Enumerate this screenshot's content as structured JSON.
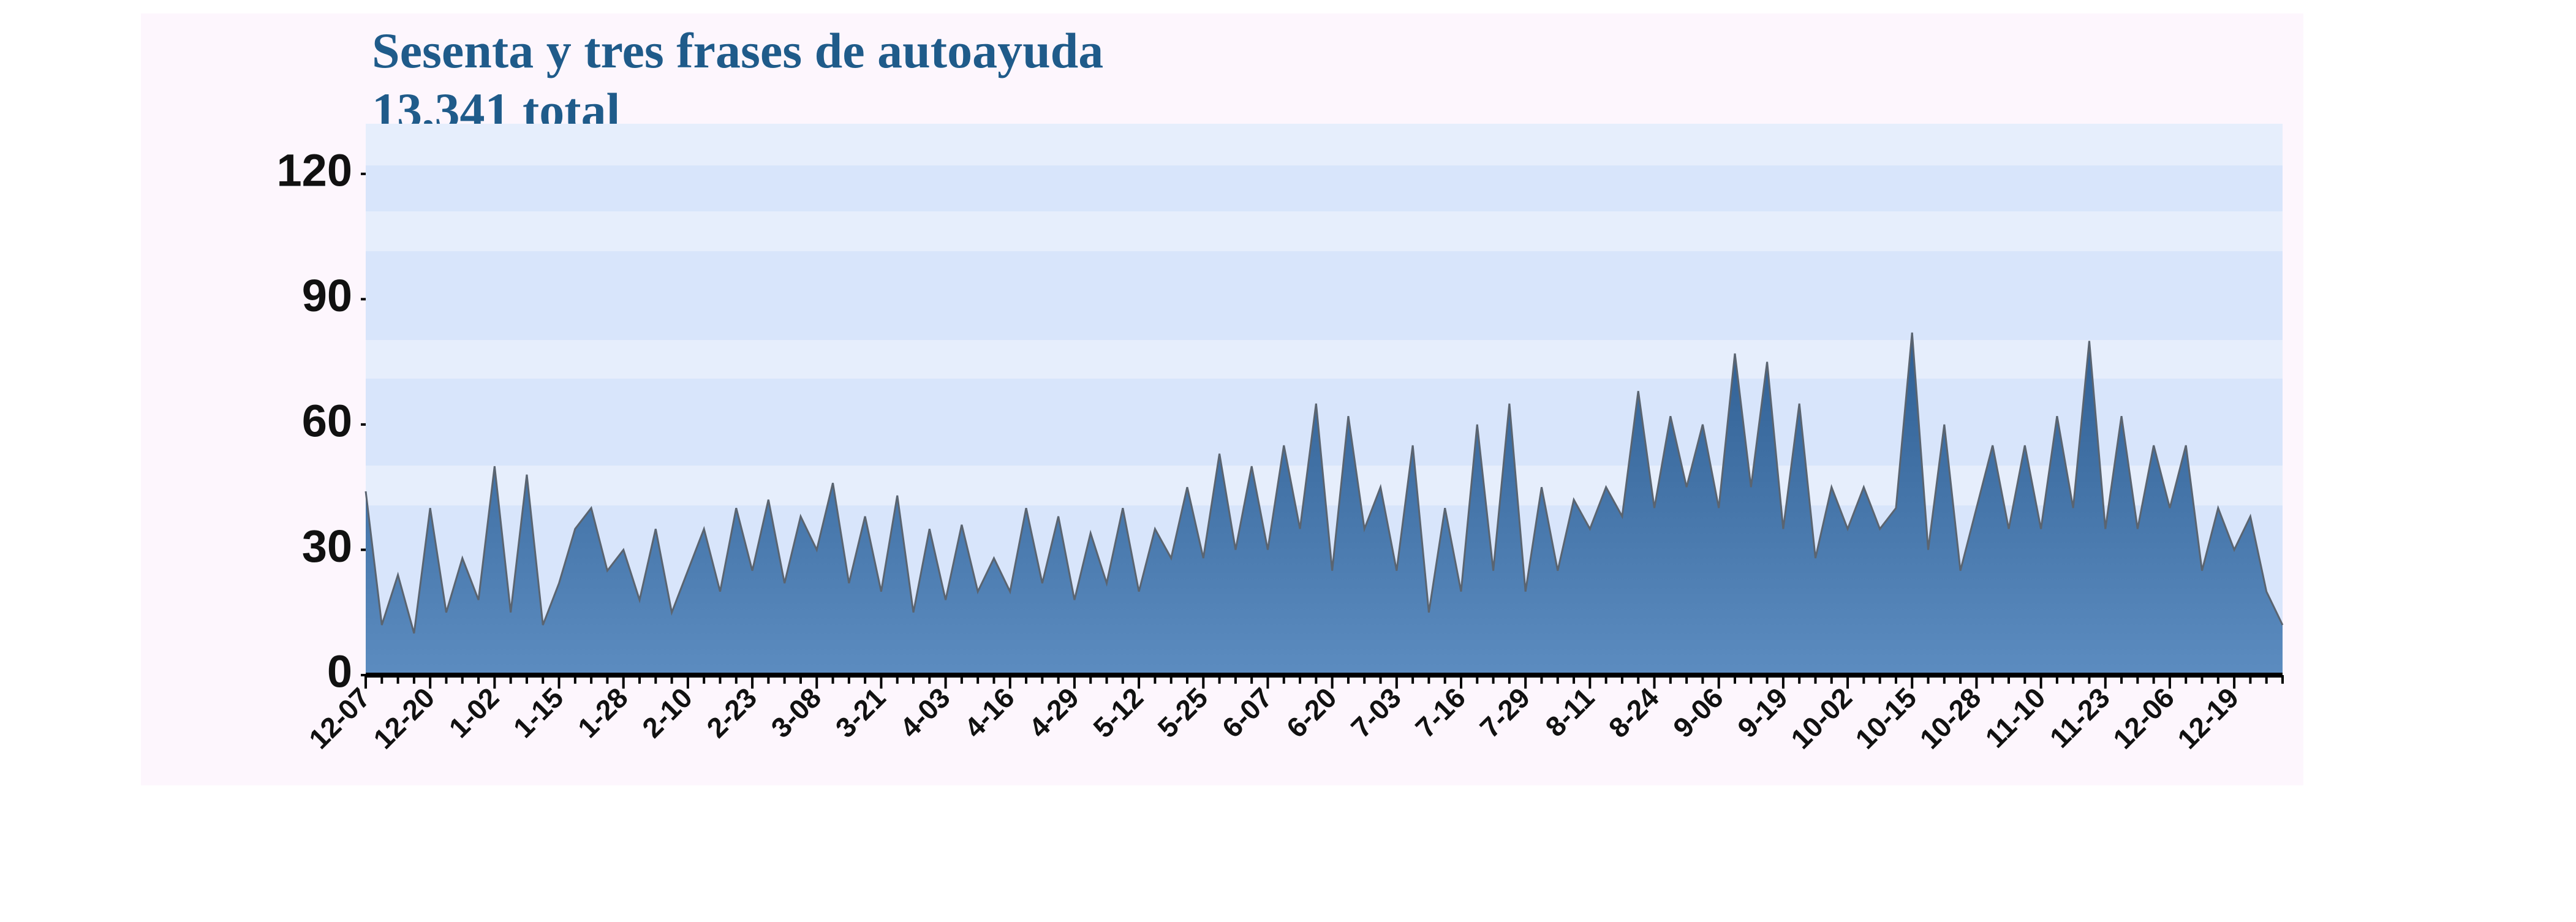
{
  "chart_data": {
    "type": "area",
    "title": "Sesenta y tres frases de autoayuda",
    "subtitle": "13,341 total",
    "categories": [
      "12-07",
      null,
      null,
      null,
      "12-20",
      null,
      null,
      null,
      "1-02",
      null,
      null,
      null,
      "1-15",
      null,
      null,
      null,
      "1-28",
      null,
      null,
      null,
      "2-10",
      null,
      null,
      null,
      "2-23",
      null,
      null,
      null,
      "3-08",
      null,
      null,
      null,
      "3-21",
      null,
      null,
      null,
      "4-03",
      null,
      null,
      null,
      "4-16",
      null,
      null,
      null,
      "4-29",
      null,
      null,
      null,
      "5-12",
      null,
      null,
      null,
      "5-25",
      null,
      null,
      null,
      "6-07",
      null,
      null,
      null,
      "6-20",
      null,
      null,
      null,
      "7-03",
      null,
      null,
      null,
      "7-16",
      null,
      null,
      null,
      "7-29",
      null,
      null,
      null,
      "8-11",
      null,
      null,
      null,
      "8-24",
      null,
      null,
      null,
      "9-06",
      null,
      null,
      null,
      "9-19",
      null,
      null,
      null,
      "10-02",
      null,
      null,
      null,
      "10-15",
      null,
      null,
      null,
      "10-28",
      null,
      null,
      null,
      "11-10",
      null,
      null,
      null,
      "11-23",
      null,
      null,
      null,
      "12-06",
      null,
      null,
      null,
      "12-19",
      null,
      null,
      null
    ],
    "values": [
      44,
      12,
      24,
      10,
      40,
      15,
      28,
      18,
      50,
      15,
      48,
      12,
      22,
      35,
      40,
      25,
      30,
      18,
      35,
      15,
      25,
      35,
      20,
      40,
      25,
      42,
      22,
      38,
      30,
      46,
      22,
      38,
      20,
      43,
      15,
      35,
      18,
      36,
      20,
      28,
      20,
      40,
      22,
      38,
      18,
      34,
      22,
      40,
      20,
      35,
      28,
      45,
      28,
      53,
      30,
      50,
      30,
      55,
      35,
      65,
      25,
      62,
      35,
      45,
      25,
      55,
      15,
      40,
      20,
      60,
      25,
      65,
      20,
      45,
      25,
      42,
      35,
      45,
      38,
      68,
      40,
      62,
      45,
      60,
      40,
      77,
      45,
      75,
      35,
      65,
      28,
      45,
      35,
      45,
      35,
      40,
      82,
      30,
      60,
      25,
      40,
      55,
      35,
      55,
      35,
      62,
      40,
      80,
      35,
      62,
      35,
      55,
      40,
      55,
      25,
      40,
      30,
      38,
      20,
      12
    ],
    "color": "#4a7aac",
    "ylim": [
      0,
      132
    ],
    "yticks": [
      0,
      30,
      60,
      90,
      120
    ]
  }
}
